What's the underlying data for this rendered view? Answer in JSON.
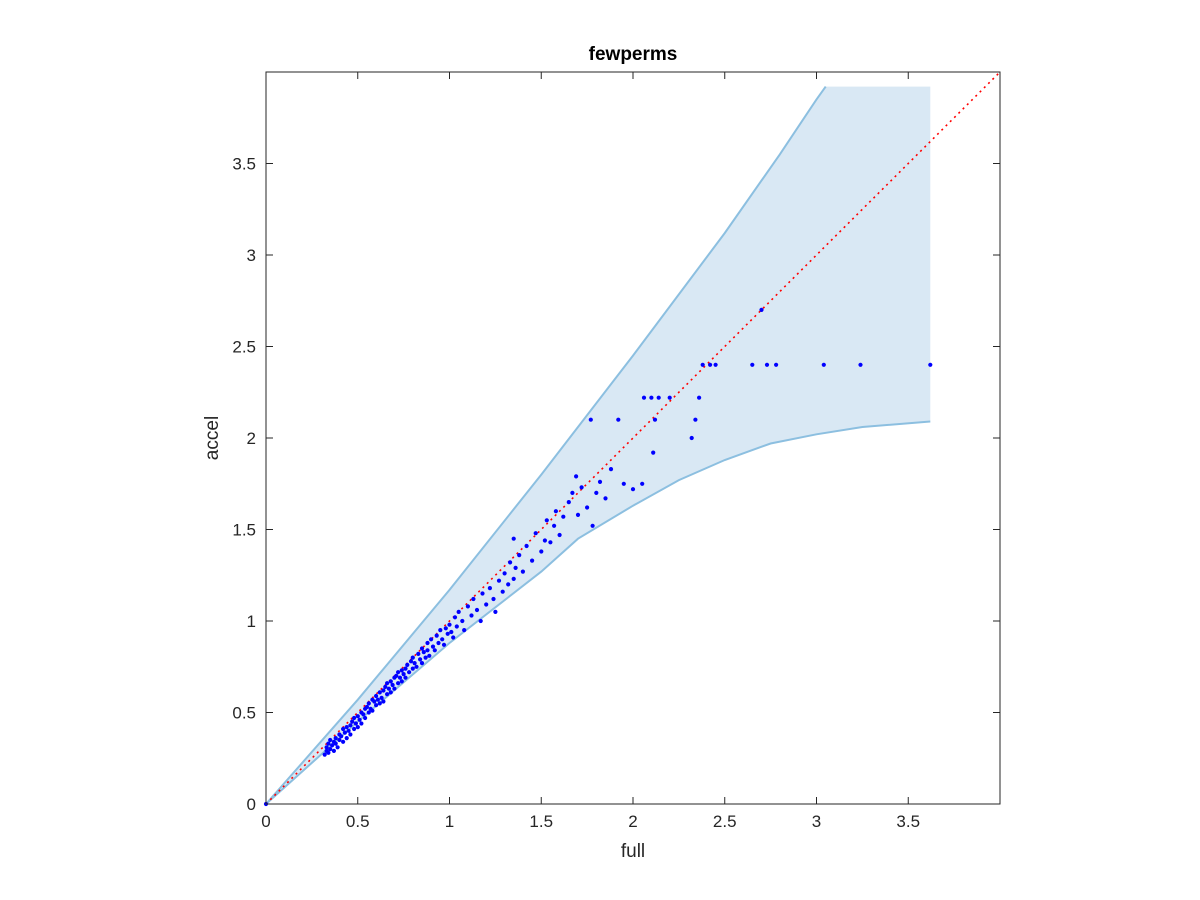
{
  "chart_data": {
    "type": "scatter",
    "title": "fewperms",
    "xlabel": "full",
    "ylabel": "accel",
    "xlim": [
      0,
      4
    ],
    "ylim": [
      0,
      4
    ],
    "xticks": [
      0,
      0.5,
      1,
      1.5,
      2,
      2.5,
      3,
      3.5
    ],
    "yticks": [
      0,
      0.5,
      1,
      1.5,
      2,
      2.5,
      3,
      3.5
    ],
    "xtick_labels": [
      "0",
      "0.5",
      "1",
      "1.5",
      "2",
      "2.5",
      "3",
      "3.5"
    ],
    "ytick_labels": [
      "0",
      "0.5",
      "1",
      "1.5",
      "2",
      "2.5",
      "3",
      "3.5"
    ],
    "grid": false,
    "colors": {
      "points": "#0000ff",
      "band_fill": "#d9e8f4",
      "band_edge": "#8cbfe0",
      "reference": "#ff0000"
    },
    "reference_line": {
      "style": "dotted",
      "from": [
        0,
        0
      ],
      "to": [
        4,
        4
      ]
    },
    "band": {
      "upper": [
        [
          0,
          0
        ],
        [
          0.5,
          0.57
        ],
        [
          1,
          1.17
        ],
        [
          1.5,
          1.8
        ],
        [
          2,
          2.45
        ],
        [
          2.5,
          3.12
        ],
        [
          2.8,
          3.55
        ],
        [
          3.0,
          3.85
        ],
        [
          3.05,
          3.92
        ],
        [
          3.62,
          3.92
        ]
      ],
      "lower": [
        [
          0,
          0
        ],
        [
          0.5,
          0.45
        ],
        [
          1,
          0.88
        ],
        [
          1.5,
          1.27
        ],
        [
          1.7,
          1.45
        ],
        [
          2,
          1.63
        ],
        [
          2.25,
          1.77
        ],
        [
          2.5,
          1.88
        ],
        [
          2.75,
          1.97
        ],
        [
          3,
          2.02
        ],
        [
          3.25,
          2.06
        ],
        [
          3.62,
          2.09
        ]
      ]
    },
    "points": [
      [
        0,
        0
      ],
      [
        0.32,
        0.27
      ],
      [
        0.33,
        0.29
      ],
      [
        0.33,
        0.31
      ],
      [
        0.34,
        0.28
      ],
      [
        0.34,
        0.33
      ],
      [
        0.35,
        0.3
      ],
      [
        0.35,
        0.35
      ],
      [
        0.36,
        0.32
      ],
      [
        0.37,
        0.34
      ],
      [
        0.37,
        0.29
      ],
      [
        0.38,
        0.36
      ],
      [
        0.38,
        0.33
      ],
      [
        0.39,
        0.31
      ],
      [
        0.4,
        0.38
      ],
      [
        0.4,
        0.35
      ],
      [
        0.41,
        0.37
      ],
      [
        0.42,
        0.34
      ],
      [
        0.42,
        0.41
      ],
      [
        0.43,
        0.39
      ],
      [
        0.44,
        0.36
      ],
      [
        0.44,
        0.42
      ],
      [
        0.45,
        0.4
      ],
      [
        0.46,
        0.43
      ],
      [
        0.46,
        0.38
      ],
      [
        0.47,
        0.45
      ],
      [
        0.48,
        0.41
      ],
      [
        0.48,
        0.47
      ],
      [
        0.49,
        0.44
      ],
      [
        0.5,
        0.42
      ],
      [
        0.5,
        0.48
      ],
      [
        0.51,
        0.46
      ],
      [
        0.52,
        0.5
      ],
      [
        0.52,
        0.44
      ],
      [
        0.53,
        0.49
      ],
      [
        0.54,
        0.52
      ],
      [
        0.54,
        0.47
      ],
      [
        0.55,
        0.53
      ],
      [
        0.56,
        0.5
      ],
      [
        0.56,
        0.55
      ],
      [
        0.57,
        0.52
      ],
      [
        0.58,
        0.57
      ],
      [
        0.58,
        0.51
      ],
      [
        0.59,
        0.56
      ],
      [
        0.6,
        0.54
      ],
      [
        0.6,
        0.59
      ],
      [
        0.61,
        0.57
      ],
      [
        0.62,
        0.55
      ],
      [
        0.62,
        0.61
      ],
      [
        0.63,
        0.58
      ],
      [
        0.64,
        0.62
      ],
      [
        0.64,
        0.56
      ],
      [
        0.65,
        0.64
      ],
      [
        0.66,
        0.6
      ],
      [
        0.66,
        0.66
      ],
      [
        0.67,
        0.63
      ],
      [
        0.68,
        0.67
      ],
      [
        0.68,
        0.61
      ],
      [
        0.69,
        0.65
      ],
      [
        0.7,
        0.69
      ],
      [
        0.7,
        0.63
      ],
      [
        0.71,
        0.7
      ],
      [
        0.72,
        0.66
      ],
      [
        0.72,
        0.72
      ],
      [
        0.73,
        0.69
      ],
      [
        0.74,
        0.73
      ],
      [
        0.74,
        0.67
      ],
      [
        0.75,
        0.71
      ],
      [
        0.76,
        0.74
      ],
      [
        0.76,
        0.69
      ],
      [
        0.77,
        0.76
      ],
      [
        0.78,
        0.72
      ],
      [
        0.79,
        0.78
      ],
      [
        0.8,
        0.74
      ],
      [
        0.8,
        0.8
      ],
      [
        0.81,
        0.77
      ],
      [
        0.82,
        0.75
      ],
      [
        0.83,
        0.82
      ],
      [
        0.84,
        0.79
      ],
      [
        0.85,
        0.85
      ],
      [
        0.85,
        0.77
      ],
      [
        0.86,
        0.83
      ],
      [
        0.87,
        0.8
      ],
      [
        0.88,
        0.88
      ],
      [
        0.88,
        0.84
      ],
      [
        0.89,
        0.81
      ],
      [
        0.9,
        0.9
      ],
      [
        0.91,
        0.86
      ],
      [
        0.92,
        0.84
      ],
      [
        0.93,
        0.92
      ],
      [
        0.94,
        0.88
      ],
      [
        0.95,
        0.95
      ],
      [
        0.96,
        0.9
      ],
      [
        0.97,
        0.87
      ],
      [
        0.98,
        0.96
      ],
      [
        0.99,
        0.93
      ],
      [
        1.0,
        0.98
      ],
      [
        1.01,
        0.94
      ],
      [
        1.02,
        0.91
      ],
      [
        1.03,
        1.02
      ],
      [
        1.04,
        0.97
      ],
      [
        1.05,
        1.05
      ],
      [
        1.07,
        1.0
      ],
      [
        1.08,
        0.95
      ],
      [
        1.1,
        1.08
      ],
      [
        1.12,
        1.03
      ],
      [
        1.13,
        1.12
      ],
      [
        1.15,
        1.06
      ],
      [
        1.17,
        1.0
      ],
      [
        1.18,
        1.15
      ],
      [
        1.2,
        1.09
      ],
      [
        1.22,
        1.18
      ],
      [
        1.24,
        1.12
      ],
      [
        1.25,
        1.05
      ],
      [
        1.27,
        1.22
      ],
      [
        1.29,
        1.16
      ],
      [
        1.3,
        1.26
      ],
      [
        1.32,
        1.2
      ],
      [
        1.33,
        1.32
      ],
      [
        1.35,
        1.23
      ],
      [
        1.35,
        1.45
      ],
      [
        1.36,
        1.29
      ],
      [
        1.38,
        1.36
      ],
      [
        1.4,
        1.27
      ],
      [
        1.42,
        1.41
      ],
      [
        1.45,
        1.33
      ],
      [
        1.47,
        1.48
      ],
      [
        1.5,
        1.38
      ],
      [
        1.52,
        1.44
      ],
      [
        1.53,
        1.55
      ],
      [
        1.55,
        1.43
      ],
      [
        1.57,
        1.52
      ],
      [
        1.58,
        1.6
      ],
      [
        1.6,
        1.47
      ],
      [
        1.62,
        1.57
      ],
      [
        1.65,
        1.65
      ],
      [
        1.67,
        1.7
      ],
      [
        1.69,
        1.79
      ],
      [
        1.7,
        1.58
      ],
      [
        1.72,
        1.73
      ],
      [
        1.75,
        1.62
      ],
      [
        1.77,
        2.1
      ],
      [
        1.78,
        1.52
      ],
      [
        1.8,
        1.7
      ],
      [
        1.82,
        1.76
      ],
      [
        1.85,
        1.67
      ],
      [
        1.88,
        1.83
      ],
      [
        1.92,
        2.1
      ],
      [
        1.95,
        1.75
      ],
      [
        2.0,
        1.72
      ],
      [
        2.05,
        1.75
      ],
      [
        2.06,
        2.22
      ],
      [
        2.1,
        2.22
      ],
      [
        2.11,
        1.92
      ],
      [
        2.12,
        2.1
      ],
      [
        2.14,
        2.22
      ],
      [
        2.2,
        2.22
      ],
      [
        2.32,
        2.0
      ],
      [
        2.34,
        2.1
      ],
      [
        2.36,
        2.22
      ],
      [
        2.38,
        2.4
      ],
      [
        2.42,
        2.4
      ],
      [
        2.45,
        2.4
      ],
      [
        2.65,
        2.4
      ],
      [
        2.7,
        2.7
      ],
      [
        2.73,
        2.4
      ],
      [
        2.78,
        2.4
      ],
      [
        3.04,
        2.4
      ],
      [
        3.24,
        2.4
      ],
      [
        3.62,
        2.4
      ]
    ]
  }
}
